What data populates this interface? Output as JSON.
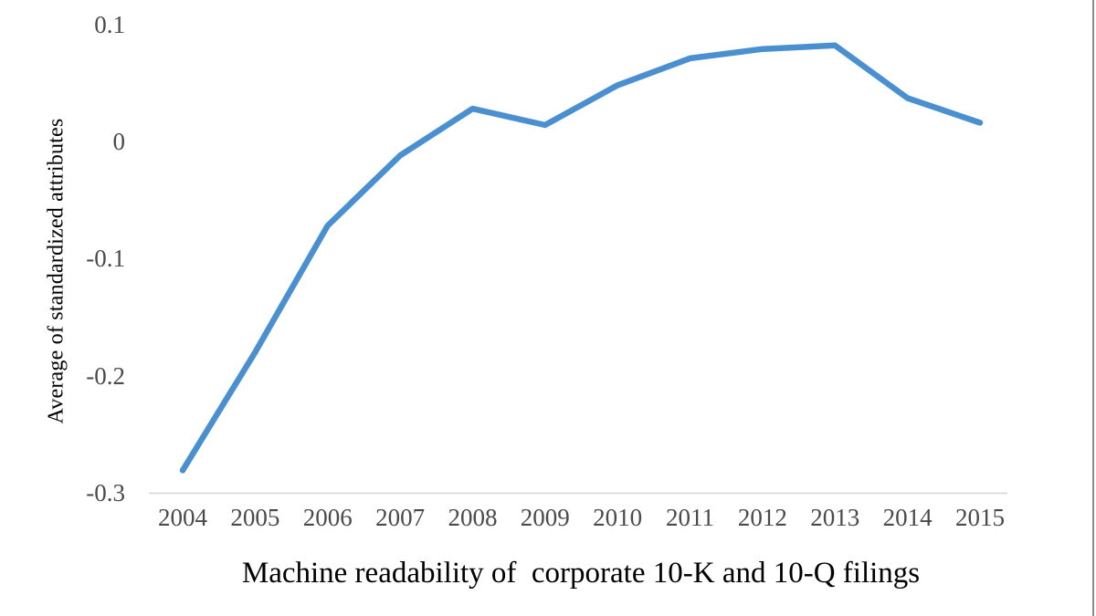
{
  "chart_data": {
    "type": "line",
    "title": "Machine readability of  corporate 10-K and 10-Q filings",
    "ylabel": "Average of standardized attributes",
    "xlabel": "",
    "categories": [
      "2004",
      "2005",
      "2006",
      "2007",
      "2008",
      "2009",
      "2010",
      "2011",
      "2012",
      "2013",
      "2014",
      "2015"
    ],
    "series": [
      {
        "name": "Average of standardized attributes",
        "values": [
          -0.281,
          -0.18,
          -0.072,
          -0.012,
          0.028,
          0.014,
          0.048,
          0.071,
          0.079,
          0.082,
          0.037,
          0.016
        ]
      }
    ],
    "y_ticks": [
      {
        "label": "0.1",
        "value": 0.1
      },
      {
        "label": "0",
        "value": 0
      },
      {
        "label": "-0.1",
        "value": -0.1
      },
      {
        "label": "-0.2",
        "value": -0.2
      },
      {
        "label": "-0.3",
        "value": -0.3
      }
    ],
    "ylim": [
      -0.3,
      0.1
    ],
    "grid": false,
    "legend": "none",
    "line_color": "#4A90D0",
    "axis_line_color": "#D6D6D6",
    "tick_label_color": "#4a4a4a",
    "title_color": "#000000",
    "page_edge_color": "#8a8a8a"
  }
}
